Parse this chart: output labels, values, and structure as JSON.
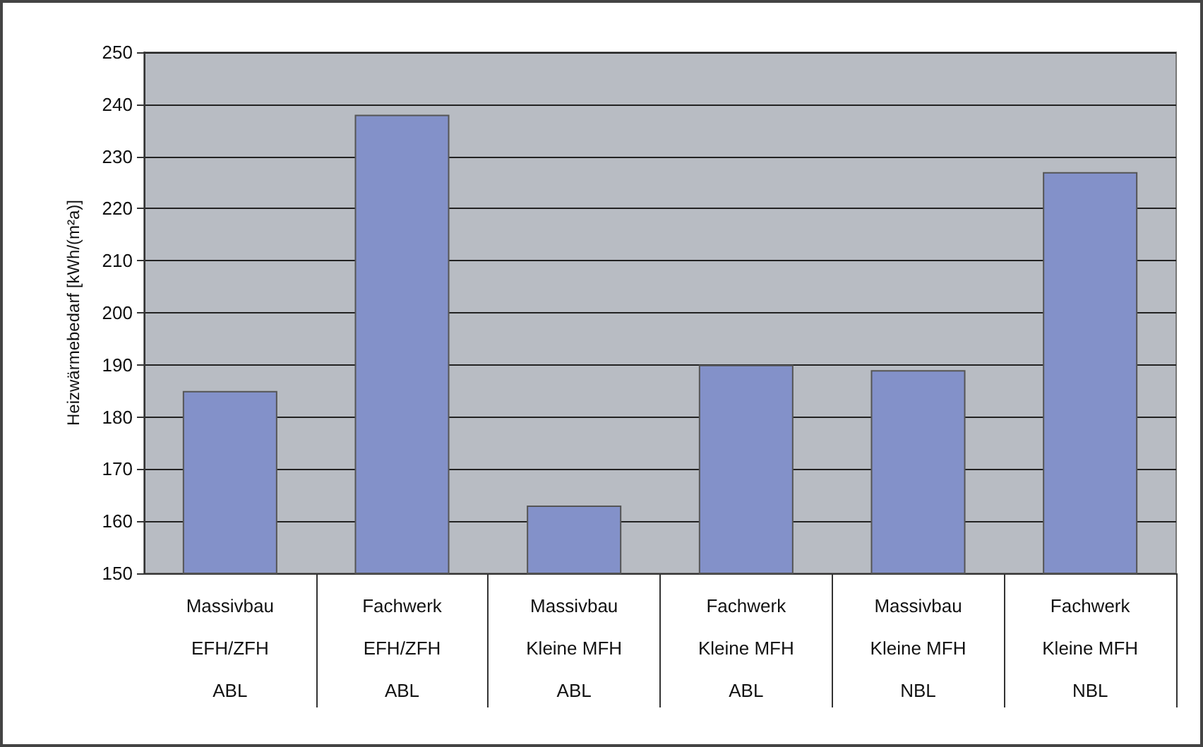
{
  "chart_data": {
    "type": "bar",
    "ylabel": "Heizwärmebedarf [kWh/(m²a)]",
    "categories": [
      "Massivbau\nEFH/ZFH\nABL",
      "Fachwerk\nEFH/ZFH\nABL",
      "Massivbau\nKleine MFH\nABL",
      "Fachwerk\nKleine MFH\nABL",
      "Massivbau\nKleine MFH\nNBL",
      "Fachwerk\nKleine MFH\nNBL"
    ],
    "values": [
      185,
      238,
      163,
      190,
      189,
      227
    ],
    "color": "#8391c9",
    "ylim": [
      150,
      250
    ],
    "yticks": [
      150,
      160,
      170,
      180,
      190,
      200,
      210,
      220,
      230,
      240,
      250
    ],
    "grid": "y"
  }
}
